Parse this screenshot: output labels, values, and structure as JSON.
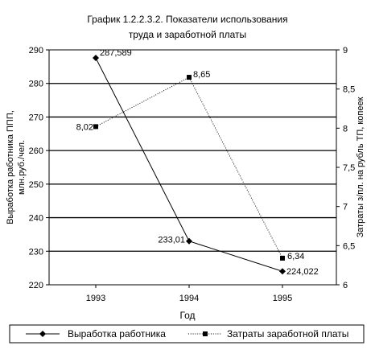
{
  "chart_data": {
    "type": "line",
    "title": "График 1.2.2.3.2.  Показатели использования труда и заработной платы",
    "title_lines": [
      "График 1.2.2.3.2.  Показатели использования",
      "труда и заработной платы"
    ],
    "categories": [
      "1993",
      "1994",
      "1995"
    ],
    "xlabel": "Год",
    "y_left": {
      "label_lines": [
        "Выработка работника ППП,",
        "млн.руб./чел."
      ],
      "min": 220,
      "max": 290,
      "step": 10,
      "tick_labels": [
        "220",
        "230",
        "240",
        "250",
        "260",
        "270",
        "280",
        "290"
      ]
    },
    "y_right": {
      "label": "Затраты з/пл. на рубль ТП, копеек",
      "min": 6,
      "max": 9,
      "step": 0.5,
      "tick_labels": [
        "6",
        "6,5",
        "7",
        "7,5",
        "8",
        "8,5",
        "9"
      ]
    },
    "grid": true,
    "legend_position": "bottom",
    "series": [
      {
        "name": "Выработка работника",
        "axis": "left",
        "marker": "diamond",
        "line_style": "solid",
        "values": [
          287.589,
          233.01,
          224.022
        ],
        "labels": [
          "287,589",
          "233,01",
          "224,022"
        ]
      },
      {
        "name": "Затраты заработной платы",
        "axis": "right",
        "marker": "square",
        "line_style": "dotted",
        "values": [
          8.02,
          8.65,
          6.34
        ],
        "labels": [
          "8,02",
          "8,65",
          "6,34"
        ]
      }
    ],
    "colors": {
      "line": "#000000",
      "grid": "#000000",
      "background": "#ffffff"
    }
  }
}
